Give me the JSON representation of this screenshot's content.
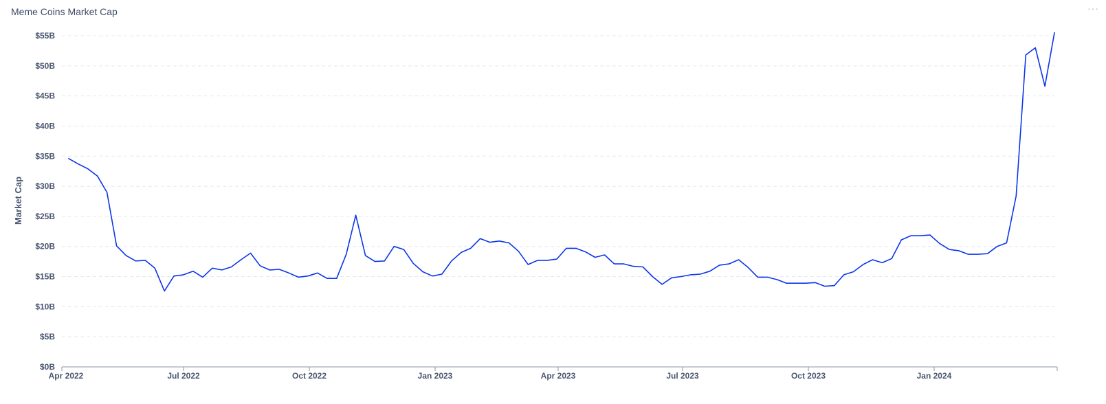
{
  "card": {
    "title": "Meme Coins Market Cap",
    "menu_icon": "more-horizontal-icon",
    "menu_label": "···"
  },
  "colors": {
    "line": "#0a35ea",
    "grid": "#e6e8ee",
    "axis": "#8a93a6",
    "text": "#4a5670"
  },
  "chart_data": {
    "type": "line",
    "title": "Meme Coins Market Cap",
    "xlabel": "",
    "ylabel": "Market Cap",
    "grid": true,
    "legend": "none",
    "xlim": [
      "2022-04-03",
      "2024-03-31"
    ],
    "ylim": [
      0,
      55
    ],
    "y_unit": "B",
    "y_ticks": [
      0,
      5,
      10,
      15,
      20,
      25,
      30,
      35,
      40,
      45,
      50,
      55
    ],
    "y_tick_labels": [
      "$0B",
      "$5B",
      "$10B",
      "$15B",
      "$20B",
      "$25B",
      "$30B",
      "$35B",
      "$40B",
      "$45B",
      "$50B",
      "$55B"
    ],
    "x_ticks": [
      {
        "label": "Apr 2022",
        "date": "2022-04-03"
      },
      {
        "label": "Jul 2022",
        "date": "2022-07-01"
      },
      {
        "label": "Oct 2022",
        "date": "2022-10-01"
      },
      {
        "label": "Jan 2023",
        "date": "2023-01-01"
      },
      {
        "label": "Apr 2023",
        "date": "2023-04-01"
      },
      {
        "label": "Jul 2023",
        "date": "2023-07-01"
      },
      {
        "label": "Oct 2023",
        "date": "2023-10-01"
      },
      {
        "label": "Jan 2024",
        "date": "2024-01-01"
      }
    ],
    "series": [
      {
        "x": [
          "2022-04-08",
          "2022-04-15",
          "2022-04-22",
          "2022-04-29",
          "2022-05-06",
          "2022-05-13",
          "2022-05-20",
          "2022-05-27",
          "2022-06-03",
          "2022-06-10",
          "2022-06-17",
          "2022-06-24",
          "2022-07-01",
          "2022-07-08",
          "2022-07-15",
          "2022-07-22",
          "2022-07-29",
          "2022-08-05",
          "2022-08-12",
          "2022-08-19",
          "2022-08-26",
          "2022-09-02",
          "2022-09-09",
          "2022-09-16",
          "2022-09-23",
          "2022-09-30",
          "2022-10-07",
          "2022-10-14",
          "2022-10-21",
          "2022-10-28",
          "2022-11-04",
          "2022-11-11",
          "2022-11-18",
          "2022-11-25",
          "2022-12-02",
          "2022-12-09",
          "2022-12-16",
          "2022-12-23",
          "2022-12-30",
          "2023-01-06",
          "2023-01-13",
          "2023-01-20",
          "2023-01-27",
          "2023-02-03",
          "2023-02-10",
          "2023-02-17",
          "2023-02-24",
          "2023-03-03",
          "2023-03-10",
          "2023-03-17",
          "2023-03-24",
          "2023-03-31",
          "2023-04-07",
          "2023-04-14",
          "2023-04-21",
          "2023-04-28",
          "2023-05-05",
          "2023-05-12",
          "2023-05-19",
          "2023-05-26",
          "2023-06-02",
          "2023-06-09",
          "2023-06-16",
          "2023-06-23",
          "2023-06-30",
          "2023-07-07",
          "2023-07-14",
          "2023-07-21",
          "2023-07-28",
          "2023-08-04",
          "2023-08-11",
          "2023-08-18",
          "2023-08-25",
          "2023-09-01",
          "2023-09-08",
          "2023-09-15",
          "2023-09-22",
          "2023-09-29",
          "2023-10-06",
          "2023-10-13",
          "2023-10-20",
          "2023-10-27",
          "2023-11-03",
          "2023-11-10",
          "2023-11-17",
          "2023-11-24",
          "2023-12-01",
          "2023-12-08",
          "2023-12-15",
          "2023-12-22",
          "2023-12-29",
          "2024-01-05",
          "2024-01-12",
          "2024-01-19",
          "2024-01-26",
          "2024-02-02",
          "2024-02-09",
          "2024-02-16",
          "2024-02-23",
          "2024-03-01",
          "2024-03-08",
          "2024-03-15",
          "2024-03-22",
          "2024-03-29"
        ],
        "values": [
          34.6,
          33.7,
          32.9,
          31.7,
          29.0,
          20.1,
          18.5,
          17.6,
          17.7,
          16.4,
          12.6,
          15.1,
          15.3,
          15.9,
          14.9,
          16.4,
          16.1,
          16.6,
          17.8,
          18.9,
          16.8,
          16.1,
          16.2,
          15.6,
          14.9,
          15.1,
          15.6,
          14.7,
          14.7,
          18.7,
          25.2,
          18.5,
          17.5,
          17.6,
          20.0,
          19.5,
          17.2,
          15.8,
          15.1,
          15.4,
          17.6,
          19.0,
          19.7,
          21.3,
          20.7,
          20.9,
          20.6,
          19.2,
          17.0,
          17.7,
          17.7,
          17.9,
          19.7,
          19.7,
          19.1,
          18.2,
          18.6,
          17.1,
          17.1,
          16.7,
          16.6,
          15.0,
          13.7,
          14.8,
          15.0,
          15.3,
          15.4,
          15.9,
          16.9,
          17.1,
          17.8,
          16.5,
          14.9,
          14.9,
          14.5,
          13.9,
          13.9,
          13.9,
          14.0,
          13.4,
          13.5,
          15.3,
          15.8,
          17.0,
          17.8,
          17.3,
          18.0,
          21.1,
          21.8,
          21.8,
          21.9,
          20.5,
          19.5,
          19.3,
          18.7,
          18.7,
          18.8,
          20.0,
          20.6,
          28.4,
          51.8,
          53.0,
          46.6,
          55.5
        ]
      }
    ]
  }
}
